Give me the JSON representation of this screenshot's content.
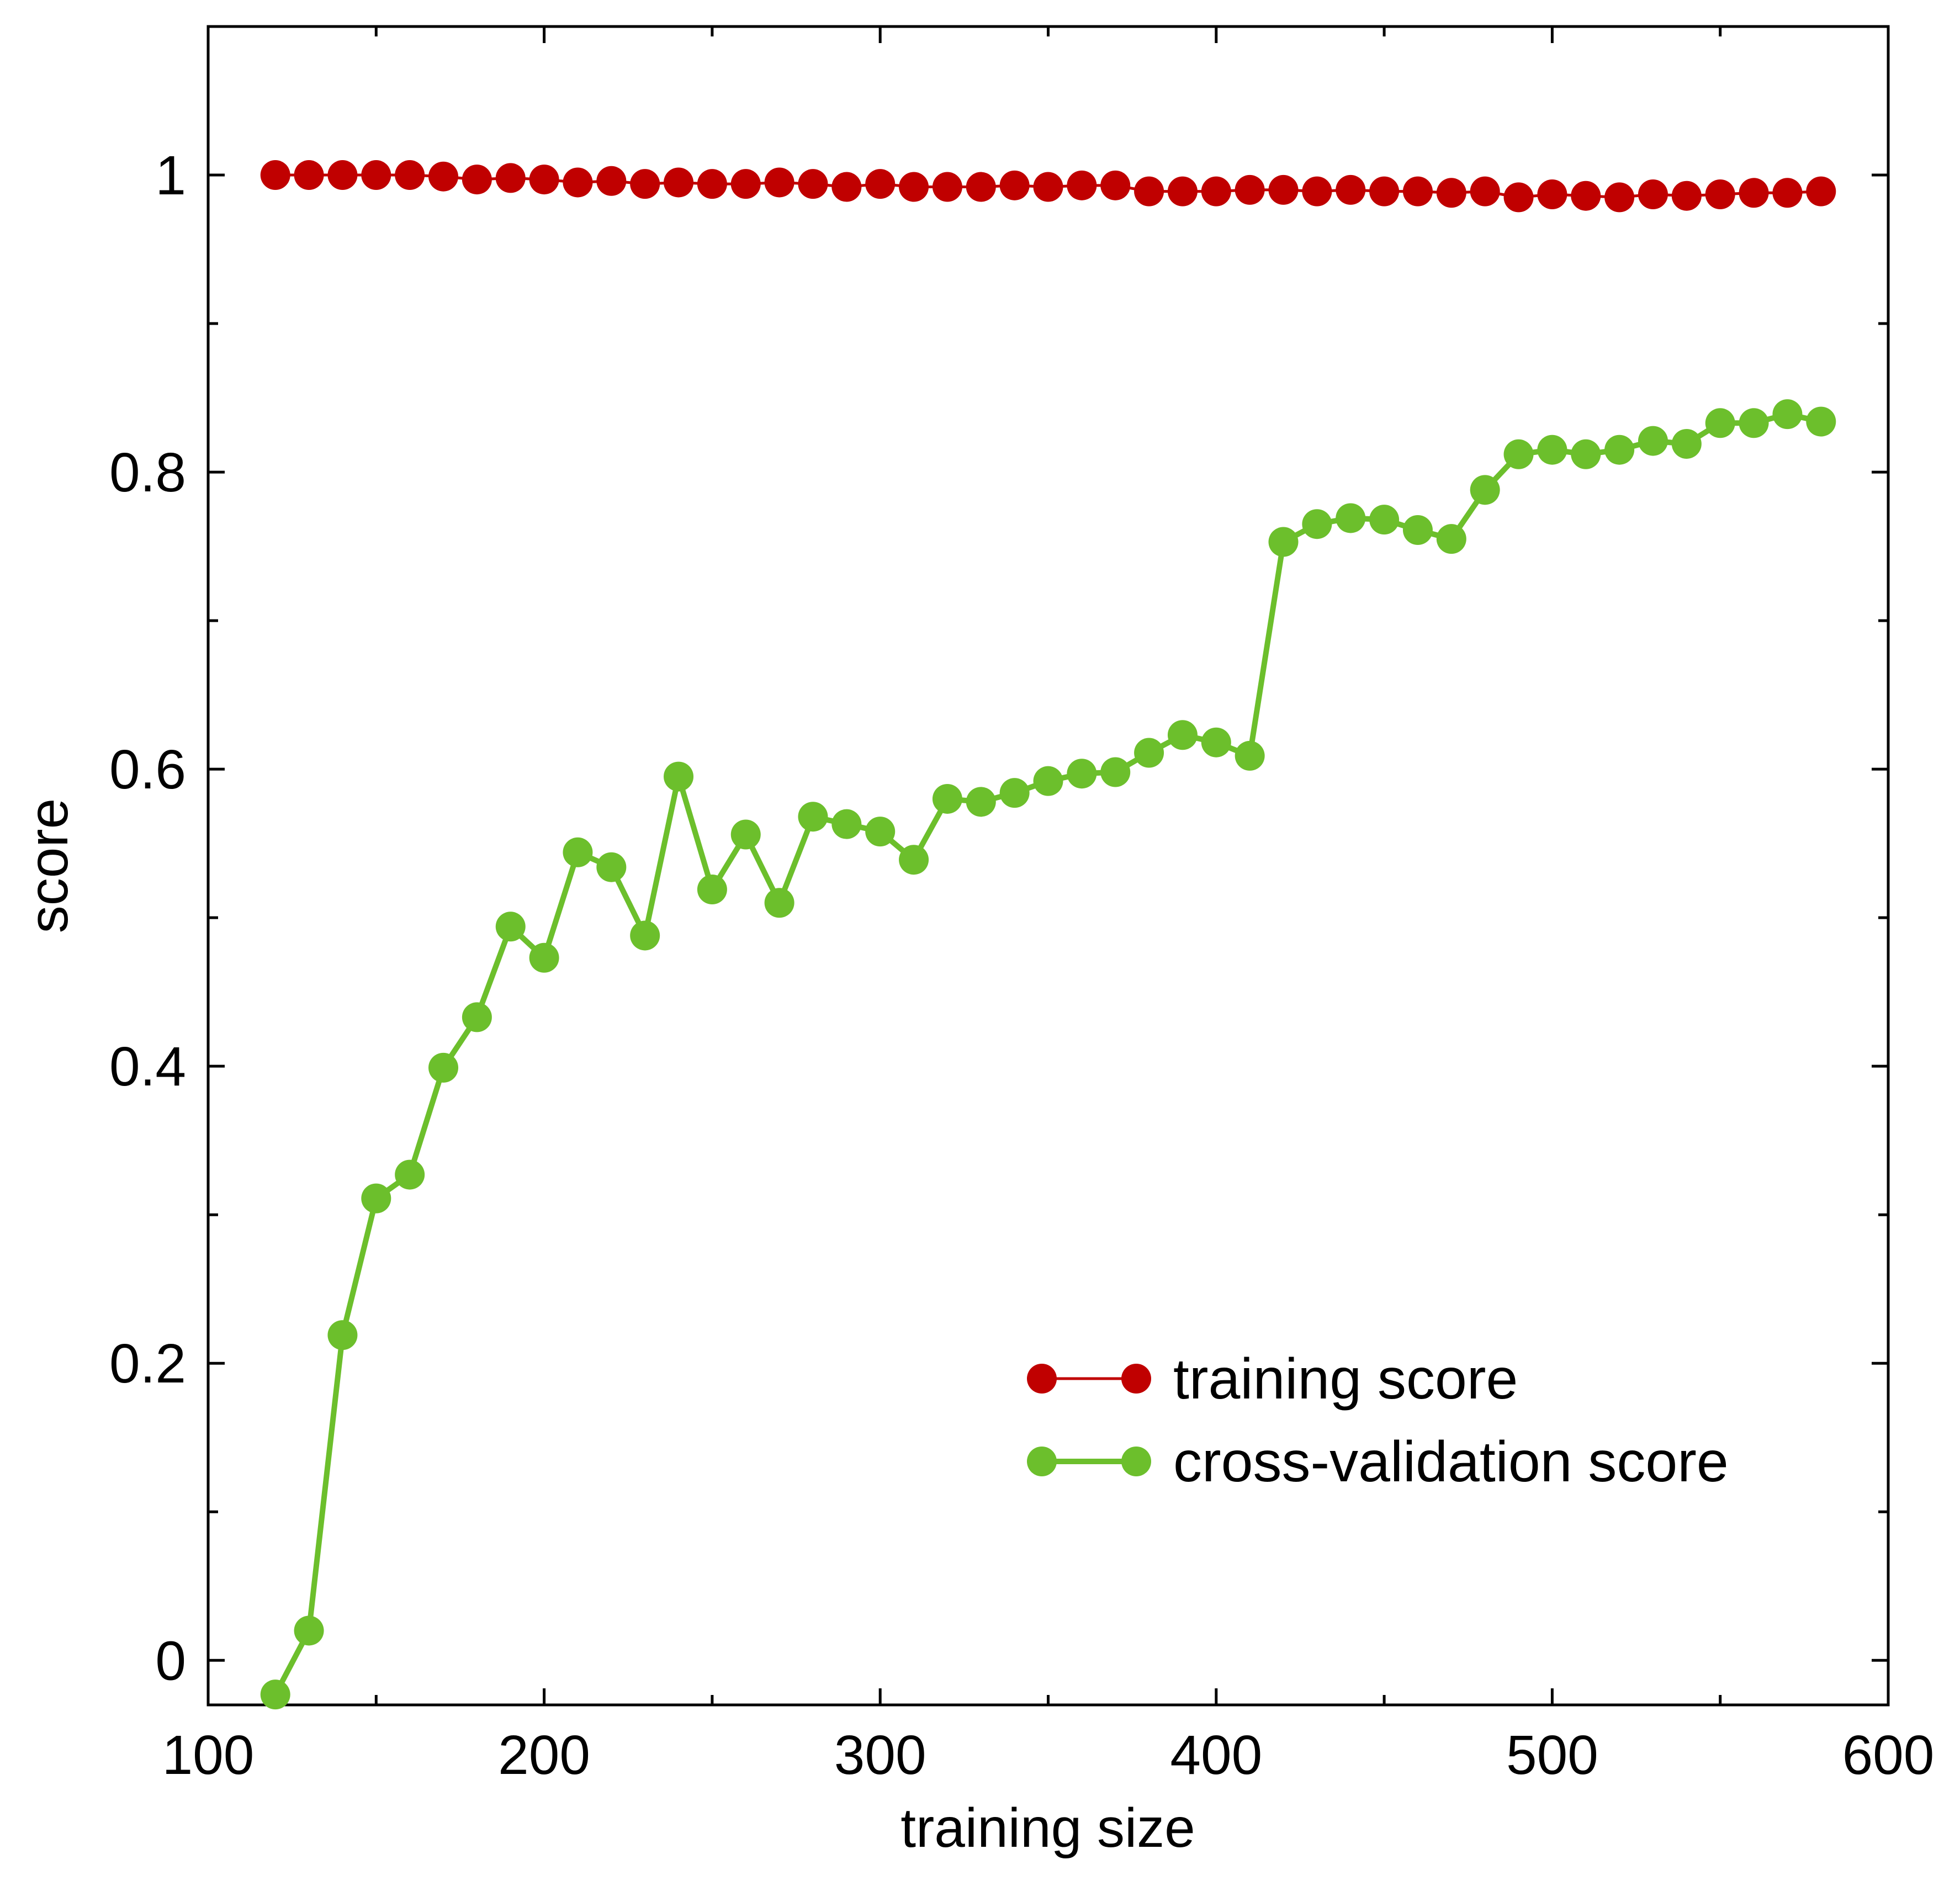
{
  "chart_data": {
    "type": "line",
    "title": "",
    "xlabel": "training size",
    "ylabel": "score",
    "xlim": [
      100,
      600
    ],
    "ylim": [
      -0.03,
      1.1
    ],
    "x_ticks": [
      100,
      200,
      300,
      400,
      500,
      600
    ],
    "x_tick_labels": [
      "100",
      "200",
      "300",
      "400",
      "500",
      "600"
    ],
    "y_ticks": [
      0,
      0.2,
      0.4,
      0.6,
      0.8,
      1
    ],
    "y_tick_labels": [
      "0",
      "0.2",
      "0.4",
      "0.6",
      "0.8",
      "1"
    ],
    "grid": false,
    "legend_position": "bottom-right",
    "x": [
      120,
      130,
      140,
      150,
      160,
      170,
      180,
      190,
      200,
      210,
      220,
      230,
      240,
      250,
      260,
      270,
      280,
      290,
      300,
      310,
      320,
      330,
      340,
      350,
      360,
      370,
      380,
      390,
      400,
      410,
      420,
      430,
      440,
      450,
      460,
      470,
      480,
      490,
      500,
      510,
      520,
      530,
      540,
      550,
      560,
      570,
      580
    ],
    "series": [
      {
        "name": "training score",
        "color": "#c00000",
        "values": [
          1.0,
          1.0,
          1.0,
          1.0,
          1.0,
          0.999,
          0.997,
          0.998,
          0.997,
          0.995,
          0.996,
          0.994,
          0.995,
          0.994,
          0.994,
          0.995,
          0.994,
          0.992,
          0.994,
          0.992,
          0.992,
          0.992,
          0.993,
          0.992,
          0.993,
          0.993,
          0.989,
          0.989,
          0.989,
          0.99,
          0.99,
          0.989,
          0.99,
          0.989,
          0.989,
          0.988,
          0.989,
          0.985,
          0.987,
          0.986,
          0.985,
          0.987,
          0.986,
          0.987,
          0.988,
          0.988,
          0.989
        ]
      },
      {
        "name": "cross-validation score",
        "color": "#6cbf2c",
        "values": [
          -0.023,
          0.02,
          0.219,
          0.311,
          0.327,
          0.399,
          0.433,
          0.494,
          0.473,
          0.544,
          0.534,
          0.488,
          0.595,
          0.519,
          0.556,
          0.51,
          0.568,
          0.563,
          0.558,
          0.539,
          0.58,
          0.578,
          0.584,
          0.592,
          0.597,
          0.598,
          0.611,
          0.623,
          0.618,
          0.609,
          0.753,
          0.765,
          0.769,
          0.768,
          0.761,
          0.755,
          0.788,
          0.812,
          0.815,
          0.812,
          0.815,
          0.821,
          0.819,
          0.833,
          0.833,
          0.839,
          0.834
        ]
      }
    ]
  }
}
